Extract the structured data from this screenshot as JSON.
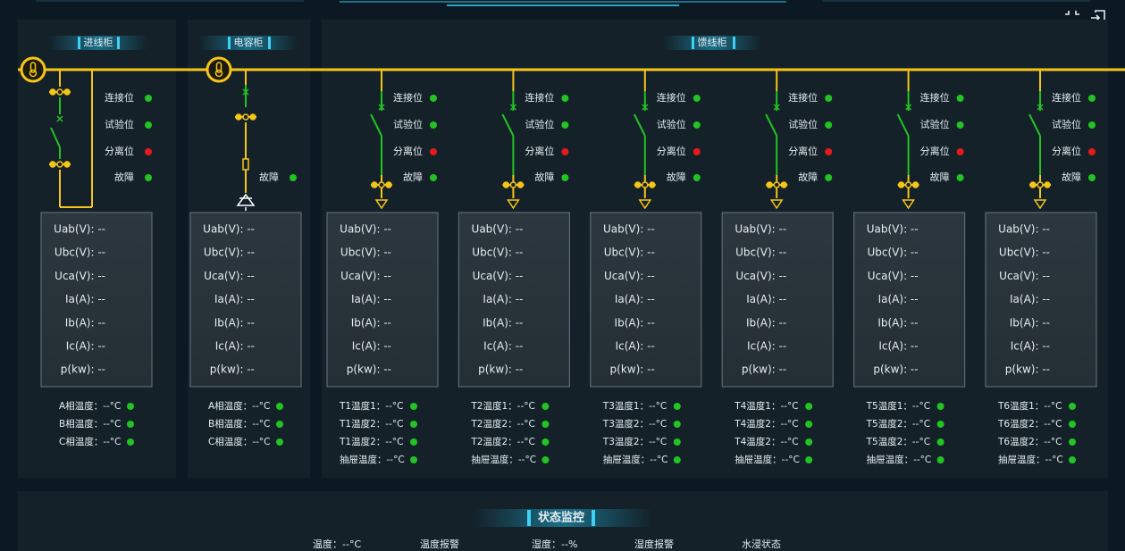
{
  "sections": [
    {
      "title": "进线柜"
    },
    {
      "title": "电容柜"
    },
    {
      "title": "馈线柜"
    }
  ],
  "status_colors": {
    "ok": "#22c322",
    "alarm": "#e8191b"
  },
  "cabinets": [
    {
      "statuses": [
        {
          "label": "连接位",
          "state": "ok"
        },
        {
          "label": "试验位",
          "state": "ok"
        },
        {
          "label": "分离位",
          "state": "alarm"
        },
        {
          "label": "故障",
          "state": "ok"
        }
      ],
      "readings": [
        "Uab(V): --",
        "Ubc(V): --",
        "Uca(V): --",
        "Ia(A): --",
        "Ib(A): --",
        "Ic(A): --",
        "p(kw): --"
      ],
      "temps": [
        {
          "label": "A相温度：--°C",
          "state": "ok"
        },
        {
          "label": "B相温度：--°C",
          "state": "ok"
        },
        {
          "label": "C相温度：--°C",
          "state": "ok"
        }
      ]
    },
    {
      "statuses": [
        {
          "label": "故障",
          "state": "ok"
        }
      ],
      "readings": [
        "Uab(V): --",
        "Ubc(V): --",
        "Uca(V): --",
        "Ia(A): --",
        "Ib(A): --",
        "Ic(A): --",
        "p(kw): --"
      ],
      "temps": [
        {
          "label": "A相温度：--°C",
          "state": "ok"
        },
        {
          "label": "B相温度：--°C",
          "state": "ok"
        },
        {
          "label": "C相温度：--°C",
          "state": "ok"
        }
      ]
    },
    {
      "statuses": [
        {
          "label": "连接位",
          "state": "ok"
        },
        {
          "label": "试验位",
          "state": "ok"
        },
        {
          "label": "分离位",
          "state": "alarm"
        },
        {
          "label": "故障",
          "state": "ok"
        }
      ],
      "readings": [
        "Uab(V): --",
        "Ubc(V): --",
        "Uca(V): --",
        "Ia(A): --",
        "Ib(A): --",
        "Ic(A): --",
        "p(kw): --"
      ],
      "temps": [
        {
          "label": "T1温度1：--°C",
          "state": "ok"
        },
        {
          "label": "T1温度2：--°C",
          "state": "ok"
        },
        {
          "label": "T1温度2：--°C",
          "state": "ok"
        },
        {
          "label": "抽屉温度：--°C",
          "state": "ok"
        }
      ]
    },
    {
      "statuses": [
        {
          "label": "连接位",
          "state": "ok"
        },
        {
          "label": "试验位",
          "state": "ok"
        },
        {
          "label": "分离位",
          "state": "alarm"
        },
        {
          "label": "故障",
          "state": "ok"
        }
      ],
      "readings": [
        "Uab(V): --",
        "Ubc(V): --",
        "Uca(V): --",
        "Ia(A): --",
        "Ib(A): --",
        "Ic(A): --",
        "p(kw): --"
      ],
      "temps": [
        {
          "label": "T2温度1：--°C",
          "state": "ok"
        },
        {
          "label": "T2温度2：--°C",
          "state": "ok"
        },
        {
          "label": "T2温度2：--°C",
          "state": "ok"
        },
        {
          "label": "抽屉温度：--°C",
          "state": "ok"
        }
      ]
    },
    {
      "statuses": [
        {
          "label": "连接位",
          "state": "ok"
        },
        {
          "label": "试验位",
          "state": "ok"
        },
        {
          "label": "分离位",
          "state": "alarm"
        },
        {
          "label": "故障",
          "state": "ok"
        }
      ],
      "readings": [
        "Uab(V): --",
        "Ubc(V): --",
        "Uca(V): --",
        "Ia(A): --",
        "Ib(A): --",
        "Ic(A): --",
        "p(kw): --"
      ],
      "temps": [
        {
          "label": "T3温度1：--°C",
          "state": "ok"
        },
        {
          "label": "T3温度2：--°C",
          "state": "ok"
        },
        {
          "label": "T3温度2：--°C",
          "state": "ok"
        },
        {
          "label": "抽屉温度：--°C",
          "state": "ok"
        }
      ]
    },
    {
      "statuses": [
        {
          "label": "连接位",
          "state": "ok"
        },
        {
          "label": "试验位",
          "state": "ok"
        },
        {
          "label": "分离位",
          "state": "alarm"
        },
        {
          "label": "故障",
          "state": "ok"
        }
      ],
      "readings": [
        "Uab(V): --",
        "Ubc(V): --",
        "Uca(V): --",
        "Ia(A): --",
        "Ib(A): --",
        "Ic(A): --",
        "p(kw): --"
      ],
      "temps": [
        {
          "label": "T4温度1：--°C",
          "state": "ok"
        },
        {
          "label": "T4温度2：--°C",
          "state": "ok"
        },
        {
          "label": "T4温度2：--°C",
          "state": "ok"
        },
        {
          "label": "抽屉温度：--°C",
          "state": "ok"
        }
      ]
    },
    {
      "statuses": [
        {
          "label": "连接位",
          "state": "ok"
        },
        {
          "label": "试验位",
          "state": "ok"
        },
        {
          "label": "分离位",
          "state": "alarm"
        },
        {
          "label": "故障",
          "state": "ok"
        }
      ],
      "readings": [
        "Uab(V): --",
        "Ubc(V): --",
        "Uca(V): --",
        "Ia(A): --",
        "Ib(A): --",
        "Ic(A): --",
        "p(kw): --"
      ],
      "temps": [
        {
          "label": "T5温度1：--°C",
          "state": "ok"
        },
        {
          "label": "T5温度2：--°C",
          "state": "ok"
        },
        {
          "label": "T5温度2：--°C",
          "state": "ok"
        },
        {
          "label": "抽屉温度：--°C",
          "state": "ok"
        }
      ]
    },
    {
      "statuses": [
        {
          "label": "连接位",
          "state": "ok"
        },
        {
          "label": "试验位",
          "state": "ok"
        },
        {
          "label": "分离位",
          "state": "alarm"
        },
        {
          "label": "故障",
          "state": "ok"
        }
      ],
      "readings": [
        "Uab(V): --",
        "Ubc(V): --",
        "Uca(V): --",
        "Ia(A): --",
        "Ib(A): --",
        "Ic(A): --",
        "p(kw): --"
      ],
      "temps": [
        {
          "label": "T6温度1：--°C",
          "state": "ok"
        },
        {
          "label": "T6温度2：--°C",
          "state": "ok"
        },
        {
          "label": "T6温度2：--°C",
          "state": "ok"
        },
        {
          "label": "抽屉温度：--°C",
          "state": "ok"
        }
      ]
    }
  ],
  "monitor": {
    "title": "状态监控",
    "items": [
      "温度：--°C",
      "温度报警",
      "湿度：--%",
      "湿度报警",
      "水浸状态"
    ]
  }
}
